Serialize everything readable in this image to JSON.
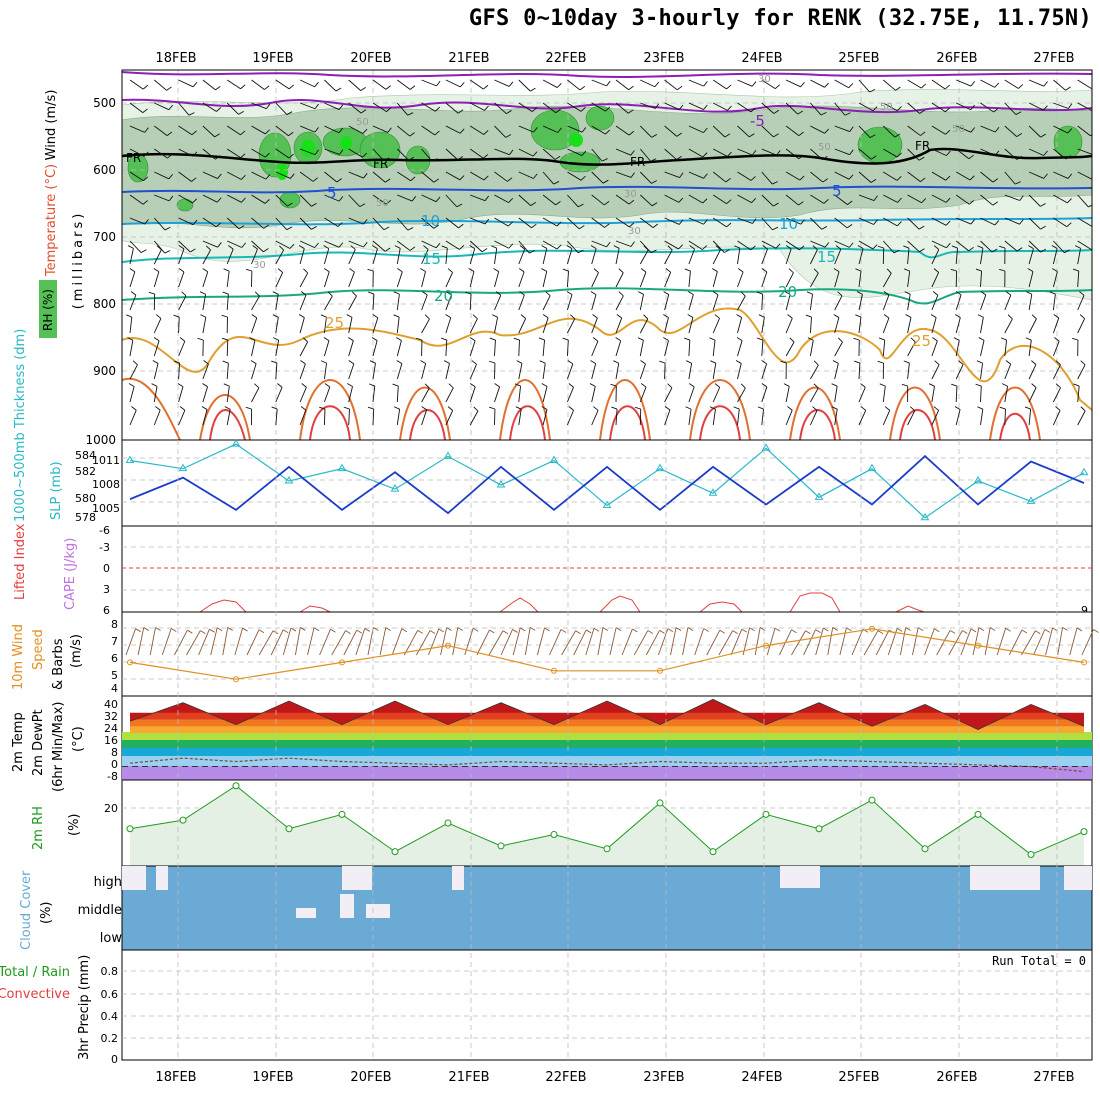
{
  "title": "GFS 0~10day 3-hourly for RENK (32.75E, 11.75N)",
  "dates": [
    "18FEB",
    "19FEB",
    "20FEB",
    "21FEB",
    "22FEB",
    "23FEB",
    "24FEB",
    "25FEB",
    "26FEB",
    "27FEB"
  ],
  "colors": {
    "rh_green": "#55c055",
    "rh_light": "#e6f2e6",
    "rh_mid": "#b7cfb7",
    "temp_purple": "#8c1fb4",
    "temp_blue": "#2050d0",
    "temp_lightblue": "#1ea0d8",
    "temp_teal": "#18b8b8",
    "temp_green": "#18a880",
    "temp_orange": "#e0a030",
    "temp_red": "#e04040",
    "slp": "#28b8c8",
    "thickness": "#1c3cc8",
    "li": "#e04040",
    "wind10m": "#e09020",
    "rh2m": "#1e9a1e",
    "cloud": "#6aaad4"
  },
  "panels": {
    "upper": {
      "ylabel_wind": "Wind (m/s)",
      "ylabel_temp": "Temperature (°C)",
      "ylabel_rh": "RH (%)",
      "ylabel_mb": "(millibars)",
      "yticks": [
        "500",
        "600",
        "700",
        "800",
        "900",
        "1000"
      ],
      "isotherm_labels": [
        "-5",
        "FR",
        "FR",
        "FR",
        "FR",
        "5",
        "5",
        "10",
        "10",
        "15",
        "15",
        "20",
        "20",
        "25",
        "25"
      ],
      "rh_labels": [
        "50",
        "50",
        "30",
        "30",
        "50",
        "50",
        "30",
        "30",
        "50"
      ]
    },
    "slp": {
      "ylabel_thick": "1000~500mb Thickness (dm)",
      "ylabel_slp": "SLP (mb)",
      "left_ticks": [
        "584",
        "582",
        "580",
        "578"
      ],
      "right_ticks": [
        "1011",
        "1008",
        "1005"
      ]
    },
    "cape": {
      "ylabel_li": "Lifted Index",
      "ylabel_cape": "CAPE (J/kg)",
      "left_ticks": [
        "-6",
        "-3",
        "0",
        "3",
        "6"
      ],
      "right_ticks": [
        "9"
      ]
    },
    "wind10m": {
      "ylabel1": "10m Wind",
      "ylabel2": "Speed",
      "ylabel3": "& Barbs",
      "unit": "(m/s)",
      "ticks": [
        "8",
        "7",
        "6",
        "5",
        "4"
      ]
    },
    "temp2m": {
      "ylabel1": "2m Temp",
      "ylabel2": "2m DewPt",
      "ylabel3": "(6hr Min/Max)",
      "unit": "(°C)",
      "ticks": [
        "40",
        "32",
        "24",
        "16",
        "8",
        "0",
        "-8"
      ]
    },
    "rh2m": {
      "ylabel": "2m RH",
      "unit": "(%)",
      "ticks": [
        "20"
      ]
    },
    "cloud": {
      "ylabel": "Cloud Cover",
      "unit": "(%)",
      "levels": [
        "high",
        "middle",
        "low"
      ]
    },
    "precip": {
      "ylabel1": "3hr Precip (mm)",
      "ylabel_total": "Total / Rain",
      "ylabel_conv": "Convective",
      "run_total": "Run Total = 0",
      "ticks": [
        "0.8",
        "0.6",
        "0.4",
        "0.2",
        "0"
      ]
    }
  },
  "chart_data": [
    {
      "type": "line",
      "title": "SLP (mb)",
      "x": [
        "18FEB00",
        "18FEB12",
        "19FEB00",
        "19FEB12",
        "20FEB00",
        "20FEB12",
        "21FEB00",
        "21FEB12",
        "22FEB00",
        "22FEB12",
        "23FEB00",
        "23FEB12",
        "24FEB00",
        "24FEB12",
        "25FEB00",
        "25FEB12",
        "26FEB00",
        "26FEB12",
        "27FEB00"
      ],
      "series": [
        {
          "name": "SLP (mb)",
          "values": [
            1010.5,
            1009.5,
            1012.5,
            1008,
            1009.5,
            1007,
            1011,
            1007.5,
            1010.5,
            1005,
            1009.5,
            1006.5,
            1012,
            1006,
            1009.5,
            1003.5,
            1008,
            1005.5,
            1009
          ]
        },
        {
          "name": "1000~500mb Thickness (dm)",
          "values": [
            579.5,
            581.5,
            578.5,
            582.5,
            578.5,
            582,
            578.2,
            582.5,
            578.5,
            582.5,
            578.5,
            582.5,
            579,
            582.5,
            579,
            583.5,
            579,
            583,
            581
          ]
        }
      ]
    },
    {
      "type": "line",
      "title": "10m Wind Speed (m/s)",
      "x": [
        "18FEB",
        "19FEB",
        "20FEB",
        "21FEB",
        "22FEB",
        "23FEB",
        "24FEB",
        "25FEB",
        "26FEB",
        "27FEB"
      ],
      "series": [
        {
          "name": "10m Wind",
          "values": [
            5.5,
            4.5,
            5.5,
            6.5,
            5,
            5,
            6.5,
            7.5,
            6.5,
            5.5
          ]
        }
      ],
      "ylim": [
        3.5,
        8.5
      ]
    },
    {
      "type": "area",
      "title": "2m Temp (°C)",
      "x": [
        "18FEB00",
        "18FEB12",
        "19FEB00",
        "19FEB12",
        "20FEB00",
        "20FEB12",
        "21FEB00",
        "21FEB12",
        "22FEB00",
        "22FEB12",
        "23FEB00",
        "23FEB12",
        "24FEB00",
        "24FEB12",
        "25FEB00",
        "25FEB12",
        "26FEB00",
        "26FEB12",
        "27FEB00"
      ],
      "series": [
        {
          "name": "2m Temp",
          "values": [
            27,
            38,
            25,
            39,
            25,
            39,
            25,
            38,
            25,
            39,
            25,
            40,
            25,
            38,
            24,
            37,
            22,
            37,
            24
          ]
        },
        {
          "name": "2m DewPt",
          "values": [
            2,
            5,
            3,
            5,
            3,
            2,
            1,
            3,
            2,
            1,
            3,
            2,
            2,
            4,
            3,
            2,
            1,
            0,
            -3
          ]
        }
      ],
      "ylim": [
        -8,
        42
      ]
    },
    {
      "type": "area",
      "title": "2m RH (%)",
      "x": [
        "18FEB00",
        "18FEB12",
        "19FEB00",
        "19FEB12",
        "20FEB00",
        "20FEB12",
        "21FEB00",
        "21FEB12",
        "22FEB00",
        "22FEB12",
        "23FEB00",
        "23FEB12",
        "24FEB00",
        "24FEB12",
        "25FEB00",
        "25FEB12",
        "26FEB00",
        "26FEB12",
        "27FEB00"
      ],
      "series": [
        {
          "name": "2m RH",
          "values": [
            13,
            16,
            28,
            13,
            18,
            5,
            15,
            7,
            11,
            6,
            22,
            5,
            18,
            13,
            23,
            6,
            18,
            4,
            12
          ]
        }
      ],
      "ylim": [
        0,
        30
      ]
    },
    {
      "type": "bar",
      "title": "3hr Precip (mm)",
      "x": [
        "18FEB",
        "19FEB",
        "20FEB",
        "21FEB",
        "22FEB",
        "23FEB",
        "24FEB",
        "25FEB",
        "26FEB",
        "27FEB"
      ],
      "values": [
        0,
        0,
        0,
        0,
        0,
        0,
        0,
        0,
        0,
        0
      ],
      "ylim": [
        0,
        0.9
      ]
    }
  ]
}
